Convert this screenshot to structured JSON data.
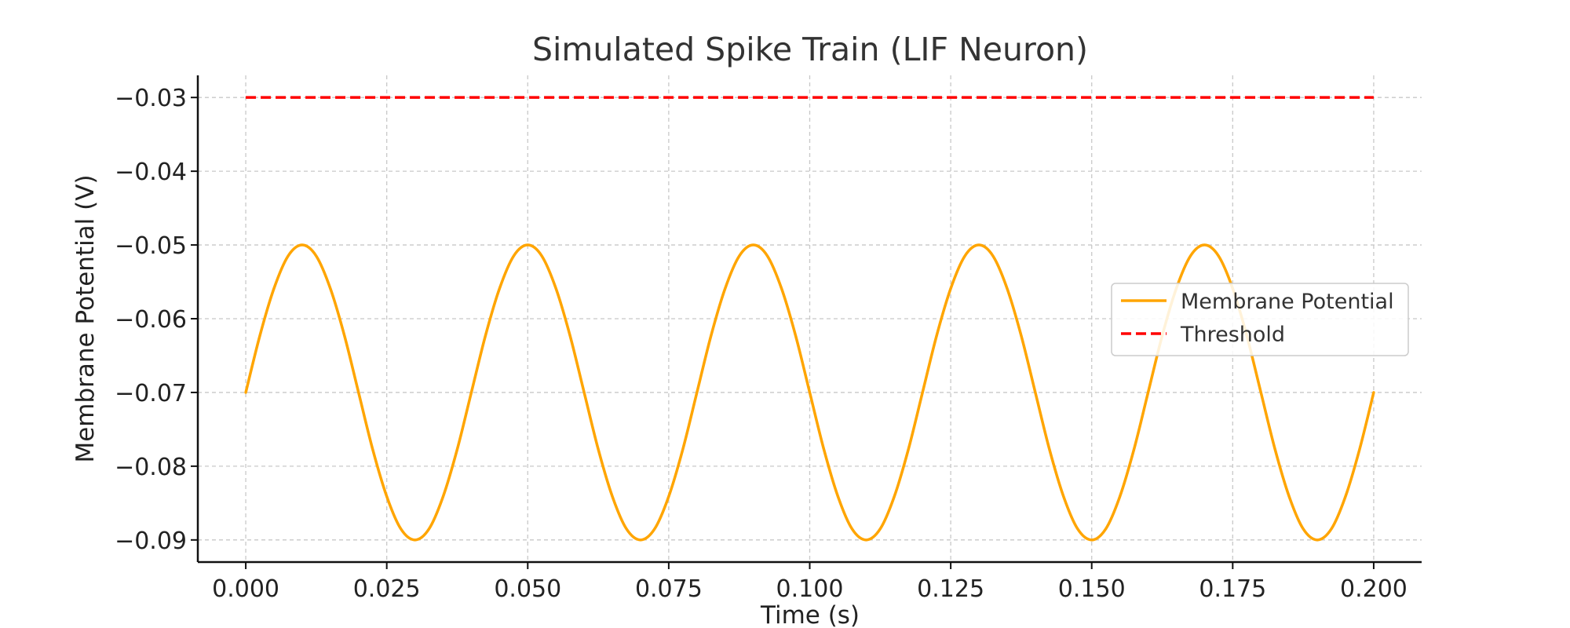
{
  "chart_data": {
    "type": "line",
    "title": "Simulated Spike Train (LIF Neuron)",
    "xlabel": "Time (s)",
    "ylabel": "Membrane Potential (V)",
    "xlim": [
      -0.0085,
      0.2085
    ],
    "ylim": [
      -0.093,
      -0.027
    ],
    "x_ticks": [
      0.0,
      0.025,
      0.05,
      0.075,
      0.1,
      0.125,
      0.15,
      0.175,
      0.2
    ],
    "x_tick_labels": [
      "0.000",
      "0.025",
      "0.050",
      "0.075",
      "0.100",
      "0.125",
      "0.150",
      "0.175",
      "0.200"
    ],
    "y_ticks": [
      -0.03,
      -0.04,
      -0.05,
      -0.06,
      -0.07,
      -0.08,
      -0.09
    ],
    "y_tick_labels": [
      "−0.03",
      "−0.04",
      "−0.05",
      "−0.06",
      "−0.07",
      "−0.08",
      "−0.09"
    ],
    "grid": true,
    "legend_position": "center-right",
    "series": [
      {
        "name": "Membrane Potential",
        "color": "#FFA500",
        "style": "solid",
        "x": [
          0.0,
          0.0025,
          0.005,
          0.0075,
          0.01,
          0.0125,
          0.015,
          0.0175,
          0.02,
          0.0225,
          0.025,
          0.0275,
          0.03,
          0.0325,
          0.035,
          0.0375,
          0.04,
          0.0425,
          0.045,
          0.0475,
          0.05,
          0.0525,
          0.055,
          0.0575,
          0.06,
          0.0625,
          0.065,
          0.0675,
          0.07,
          0.0725,
          0.075,
          0.0775,
          0.08,
          0.0825,
          0.085,
          0.0875,
          0.09,
          0.0925,
          0.095,
          0.0975,
          0.1,
          0.1025,
          0.105,
          0.1075,
          0.11,
          0.1125,
          0.115,
          0.1175,
          0.12,
          0.1225,
          0.125,
          0.1275,
          0.13,
          0.1325,
          0.135,
          0.1375,
          0.14,
          0.1425,
          0.145,
          0.1475,
          0.15,
          0.1525,
          0.155,
          0.1575,
          0.16,
          0.1625,
          0.165,
          0.1675,
          0.17,
          0.1725,
          0.175,
          0.1775,
          0.18,
          0.1825,
          0.185,
          0.1875,
          0.19,
          0.1925,
          0.195,
          0.1975,
          0.2
        ],
        "y": [
          -0.07,
          -0.0623,
          -0.0559,
          -0.0515,
          -0.05,
          -0.0515,
          -0.0559,
          -0.0623,
          -0.07,
          -0.0777,
          -0.0841,
          -0.0885,
          -0.09,
          -0.0885,
          -0.0841,
          -0.0777,
          -0.07,
          -0.0623,
          -0.0559,
          -0.0515,
          -0.05,
          -0.0515,
          -0.0559,
          -0.0623,
          -0.07,
          -0.0777,
          -0.0841,
          -0.0885,
          -0.09,
          -0.0885,
          -0.0841,
          -0.0777,
          -0.07,
          -0.0623,
          -0.0559,
          -0.0515,
          -0.05,
          -0.0515,
          -0.0559,
          -0.0623,
          -0.07,
          -0.0777,
          -0.0841,
          -0.0885,
          -0.09,
          -0.0885,
          -0.0841,
          -0.0777,
          -0.07,
          -0.0623,
          -0.0559,
          -0.0515,
          -0.05,
          -0.0515,
          -0.0559,
          -0.0623,
          -0.07,
          -0.0777,
          -0.0841,
          -0.0885,
          -0.09,
          -0.0885,
          -0.0841,
          -0.0777,
          -0.07,
          -0.0623,
          -0.0559,
          -0.0515,
          -0.05,
          -0.0515,
          -0.0559,
          -0.0623,
          -0.07,
          -0.0777,
          -0.0841,
          -0.0885,
          -0.09,
          -0.0885,
          -0.0841,
          -0.0777,
          -0.07
        ]
      },
      {
        "name": "Threshold",
        "color": "#FF0000",
        "style": "dashed",
        "x": [
          0.0,
          0.2
        ],
        "y": [
          -0.03,
          -0.03
        ]
      }
    ]
  }
}
